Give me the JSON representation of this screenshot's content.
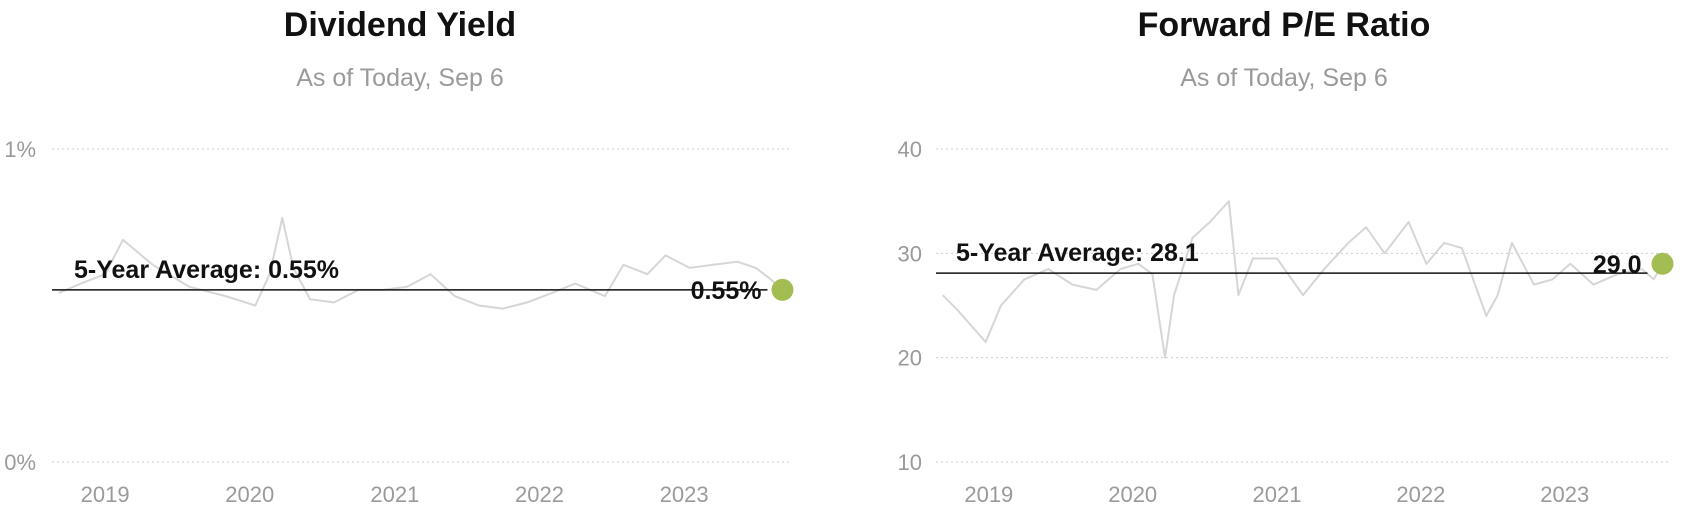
{
  "chart_data": [
    {
      "type": "line",
      "title": "Dividend Yield",
      "subtitle": "As of Today, Sep 6",
      "x": [
        "2018-09-06",
        "2018-11-01",
        "2019-01-01",
        "2019-02-15",
        "2019-05-01",
        "2019-08-01",
        "2019-11-01",
        "2020-01-15",
        "2020-02-20",
        "2020-03-23",
        "2020-04-20",
        "2020-06-01",
        "2020-08-01",
        "2020-10-01",
        "2020-12-01",
        "2021-02-01",
        "2021-04-01",
        "2021-06-01",
        "2021-08-01",
        "2021-10-01",
        "2021-12-01",
        "2022-02-01",
        "2022-04-01",
        "2022-06-15",
        "2022-08-01",
        "2022-09-30",
        "2022-11-15",
        "2023-01-15",
        "2023-03-15",
        "2023-05-15",
        "2023-07-01",
        "2023-08-01",
        "2023-09-06"
      ],
      "series": [
        {
          "values": [
            0.54,
            0.57,
            0.6,
            0.71,
            0.63,
            0.56,
            0.53,
            0.5,
            0.6,
            0.78,
            0.62,
            0.52,
            0.51,
            0.55,
            0.55,
            0.56,
            0.6,
            0.53,
            0.5,
            0.49,
            0.51,
            0.54,
            0.57,
            0.53,
            0.63,
            0.6,
            0.66,
            0.62,
            0.63,
            0.64,
            0.62,
            0.59,
            0.55
          ],
          "color": "#d6d6d6"
        }
      ],
      "average": {
        "label": "5-Year Average: 0.55%",
        "value": 0.55
      },
      "current": {
        "label": "0.55%",
        "value": 0.55,
        "date": "2023-09-06",
        "color": "#a4bd52"
      },
      "yticks": [
        {
          "value": 0,
          "label": "0%"
        },
        {
          "value": 1,
          "label": "1%"
        }
      ],
      "xticks": [
        {
          "date": "2019-01-01",
          "label": "2019"
        },
        {
          "date": "2020-01-01",
          "label": "2020"
        },
        {
          "date": "2021-01-01",
          "label": "2021"
        },
        {
          "date": "2022-01-01",
          "label": "2022"
        },
        {
          "date": "2023-01-01",
          "label": "2023"
        }
      ],
      "ylim": [
        0,
        1
      ],
      "xlim": [
        "2018-08-20",
        "2023-09-25"
      ],
      "grid": true,
      "grid_color": "#cccccc"
    },
    {
      "type": "line",
      "title": "Forward P/E Ratio",
      "subtitle": "As of Today, Sep 6",
      "x": [
        "2018-09-06",
        "2018-10-15",
        "2018-12-24",
        "2019-02-01",
        "2019-04-01",
        "2019-06-01",
        "2019-08-01",
        "2019-10-01",
        "2019-12-01",
        "2020-01-15",
        "2020-02-20",
        "2020-03-23",
        "2020-04-15",
        "2020-06-01",
        "2020-07-15",
        "2020-09-01",
        "2020-09-25",
        "2020-11-01",
        "2021-01-01",
        "2021-03-08",
        "2021-05-01",
        "2021-07-01",
        "2021-08-15",
        "2021-10-01",
        "2021-12-01",
        "2022-01-15",
        "2022-03-01",
        "2022-04-15",
        "2022-06-16",
        "2022-07-15",
        "2022-08-20",
        "2022-10-15",
        "2022-12-01",
        "2023-01-15",
        "2023-03-15",
        "2023-05-15",
        "2023-07-15",
        "2023-08-15",
        "2023-09-06"
      ],
      "series": [
        {
          "values": [
            26,
            24.5,
            21.5,
            25,
            27.5,
            28.5,
            27,
            26.5,
            28.5,
            29,
            28,
            20,
            26,
            31.5,
            33,
            35,
            26,
            29.5,
            29.5,
            26,
            28.5,
            31,
            32.5,
            30,
            33,
            29,
            31,
            30.5,
            24,
            26,
            31,
            27,
            27.5,
            29,
            27,
            28,
            28.5,
            27.5,
            29
          ],
          "color": "#d6d6d6"
        }
      ],
      "average": {
        "label": "5-Year Average: 28.1",
        "value": 28.1
      },
      "current": {
        "label": "29.0",
        "value": 29.0,
        "date": "2023-09-06",
        "color": "#a4bd52"
      },
      "yticks": [
        {
          "value": 10,
          "label": "10"
        },
        {
          "value": 20,
          "label": "20"
        },
        {
          "value": 30,
          "label": "30"
        },
        {
          "value": 40,
          "label": "40"
        }
      ],
      "xticks": [
        {
          "date": "2019-01-01",
          "label": "2019"
        },
        {
          "date": "2020-01-01",
          "label": "2020"
        },
        {
          "date": "2021-01-01",
          "label": "2021"
        },
        {
          "date": "2022-01-01",
          "label": "2022"
        },
        {
          "date": "2023-01-01",
          "label": "2023"
        }
      ],
      "ylim": [
        10,
        40
      ],
      "xlim": [
        "2018-08-20",
        "2023-09-25"
      ],
      "grid": true,
      "grid_color": "#cccccc"
    }
  ]
}
